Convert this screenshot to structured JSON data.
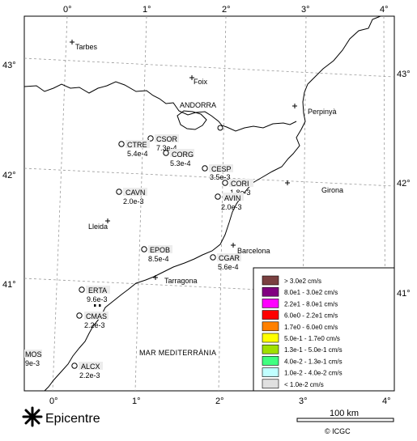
{
  "map": {
    "lon_labels": [
      "0°",
      "1°",
      "2°",
      "3°",
      "4°"
    ],
    "lat_labels": [
      "43°",
      "42°",
      "41°"
    ],
    "places": [
      "Tarbes",
      "Foix",
      "ANDORRA",
      "Perpinyà",
      "Girona",
      "Barcelona",
      "Tarragona",
      "Lleida"
    ],
    "sea_label": "MAR MEDITERRÀNIA"
  },
  "stations": [
    {
      "code": "CTRE",
      "value": "5.4e-4"
    },
    {
      "code": "CSOR",
      "value": "7.3e-4"
    },
    {
      "code": "CORG",
      "value": "5.3e-4"
    },
    {
      "code": "CESP",
      "value": "3.5e-3"
    },
    {
      "code": "CORI",
      "value": "1.8e-3"
    },
    {
      "code": "CAVN",
      "value": "2.0e-3"
    },
    {
      "code": "AVIN",
      "value": "2.0e-3"
    },
    {
      "code": "EPOB",
      "value": "8.5e-4"
    },
    {
      "code": "CGAR",
      "value": "5.6e-4"
    },
    {
      "code": "ERTA",
      "value": "9.6e-3"
    },
    {
      "code": "CMAS",
      "value": "2.2e-3"
    },
    {
      "code": "MOS",
      "value": "9e-3"
    },
    {
      "code": "ALCX",
      "value": "2.2e-3"
    }
  ],
  "legend": [
    {
      "label": "> 3.0e2 cm/s",
      "color": "#7a4040"
    },
    {
      "label": "8.0e1 - 3.0e2 cm/s",
      "color": "#800080"
    },
    {
      "label": "2.2e1 - 8.0e1 cm/s",
      "color": "#ff00ff"
    },
    {
      "label": "6.0e0 - 2.2e1 cm/s",
      "color": "#ff0000"
    },
    {
      "label": "1.7e0 - 6.0e0 cm/s",
      "color": "#ff8000"
    },
    {
      "label": "5.0e-1 - 1.7e0 cm/s",
      "color": "#ffff00"
    },
    {
      "label": "1.3e-1 - 5.0e-1 cm/s",
      "color": "#a0e000"
    },
    {
      "label": "4.0e-2 - 1.3e-1 cm/s",
      "color": "#40ff80"
    },
    {
      "label": "1.0e-2 - 4.0e-2 cm/s",
      "color": "#c0ffff"
    },
    {
      "label": "< 1.0e-2 cm/s",
      "color": "#e0e0e0"
    }
  ],
  "footer": {
    "epicentre_label": "Epicentre",
    "scale_label": "100 km",
    "credit": "© ICGC"
  }
}
